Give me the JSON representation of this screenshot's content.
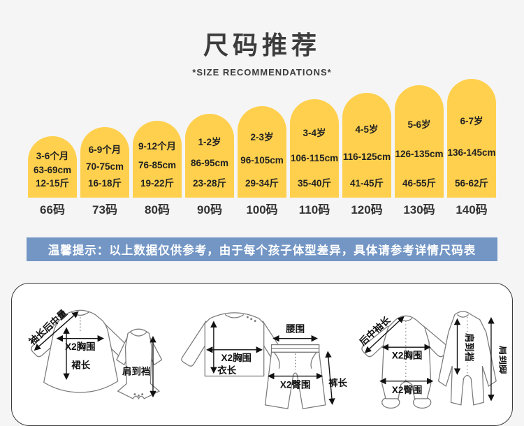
{
  "header": {
    "title": "尺码推荐",
    "subtitle": "*SIZE RECOMMENDATIONS*"
  },
  "colors": {
    "arch_yellow": "#FFD04D",
    "banner_blue": "#7396C5",
    "background": "#F5F5F6",
    "text_dark": "#333333"
  },
  "sizes": [
    {
      "age": "3-6个月",
      "height": "63-69cm",
      "weight": "12-15斤",
      "code": "66码"
    },
    {
      "age": "6-9个月",
      "height": "70-75cm",
      "weight": "16-18斤",
      "code": "73码"
    },
    {
      "age": "9-12个月",
      "height": "76-85cm",
      "weight": "19-22斤",
      "code": "80码"
    },
    {
      "age": "1-2岁",
      "height": "86-95cm",
      "weight": "23-28斤",
      "code": "90码"
    },
    {
      "age": "2-3岁",
      "height": "96-105cm",
      "weight": "29-34斤",
      "code": "100码"
    },
    {
      "age": "3-4岁",
      "height": "106-115cm",
      "weight": "35-40斤",
      "code": "110码"
    },
    {
      "age": "4-5岁",
      "height": "116-125cm",
      "weight": "41-45斤",
      "code": "120码"
    },
    {
      "age": "5-6岁",
      "height": "126-135cm",
      "weight": "46-55斤",
      "code": "130码"
    },
    {
      "age": "6-7岁",
      "height": "136-145cm",
      "weight": "56-62斤",
      "code": "140码"
    }
  ],
  "notice": "温馨提示：以上数据仅供参考，由于每个孩子体型差异，具体请参考详情尺码表",
  "measure_guide": {
    "group1": {
      "sleeve": "袖长后中量",
      "chest": "X2胸围",
      "skirt": "裙长",
      "shoulder_crotch": "肩到裆"
    },
    "group2": {
      "chest": "X2胸围",
      "length": "衣长",
      "waist": "腰围",
      "hip": "X2臀围",
      "pants": "裤长"
    },
    "group3": {
      "sleeve": "后中袖长",
      "chest": "X2胸围",
      "hip": "X2臀围",
      "shoulder_crotch": "肩到裆",
      "shoulder_foot": "肩到脚"
    }
  }
}
